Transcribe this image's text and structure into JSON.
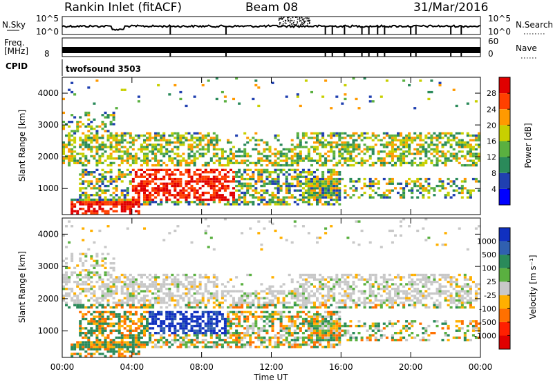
{
  "header": {
    "station": "Rankin Inlet (fitACF)",
    "beam": "Beam 08",
    "date": "31/Mar/2016"
  },
  "nsky_panel": {
    "left_label": "N.Sky",
    "left_ticks": [
      "10^5",
      "10^0"
    ],
    "right_ticks": [
      "10^5",
      "10^0"
    ],
    "right_label": "N.Search"
  },
  "freq_panel": {
    "left_label_top": "Freq.",
    "left_label_unit": "[MHz]",
    "left_tick": "8",
    "right_ticks": [
      "60",
      "0"
    ],
    "right_label": "Nave"
  },
  "cpid_panel": {
    "label": "CPID",
    "text": "twofsound 3503"
  },
  "x_axis": {
    "ticks": [
      "00:00",
      "04:00",
      "08:00",
      "12:00",
      "16:00",
      "20:00",
      "00:00"
    ],
    "label": "Time UT"
  },
  "chart_data": [
    {
      "type": "heatmap",
      "quantity": "Power",
      "ylabel": "Slant Range [km]",
      "yticks": [
        1000,
        2000,
        3000,
        4000
      ],
      "ylim": [
        180,
        4500
      ],
      "xlim_hours": [
        0,
        24
      ],
      "colorbar_label": "Power [dB]",
      "colorbar_ticks": [
        "4",
        "8",
        "12",
        "16",
        "20",
        "24",
        "28"
      ],
      "colorbar_colors": [
        "#0000ff",
        "#2040b0",
        "#2a8a5a",
        "#5ab040",
        "#c8d000",
        "#ff9a00",
        "#ff4000",
        "#e00000"
      ]
    },
    {
      "type": "heatmap",
      "quantity": "Velocity",
      "ylabel": "Slant Range [km]",
      "yticks": [
        1000,
        2000,
        3000,
        4000
      ],
      "ylim": [
        180,
        4500
      ],
      "xlim_hours": [
        0,
        24
      ],
      "colorbar_label": "Velocity [m s⁻¹]",
      "colorbar_ticks": [
        "1000",
        "500",
        "100",
        "25",
        "-25",
        "-100",
        "-500",
        "-1000"
      ],
      "colorbar_colors": [
        "#1030c0",
        "#3060b0",
        "#2a8a5a",
        "#5ab040",
        "#c8c8c8",
        "#ffb000",
        "#ff7000",
        "#ff2000",
        "#e00000"
      ]
    }
  ]
}
